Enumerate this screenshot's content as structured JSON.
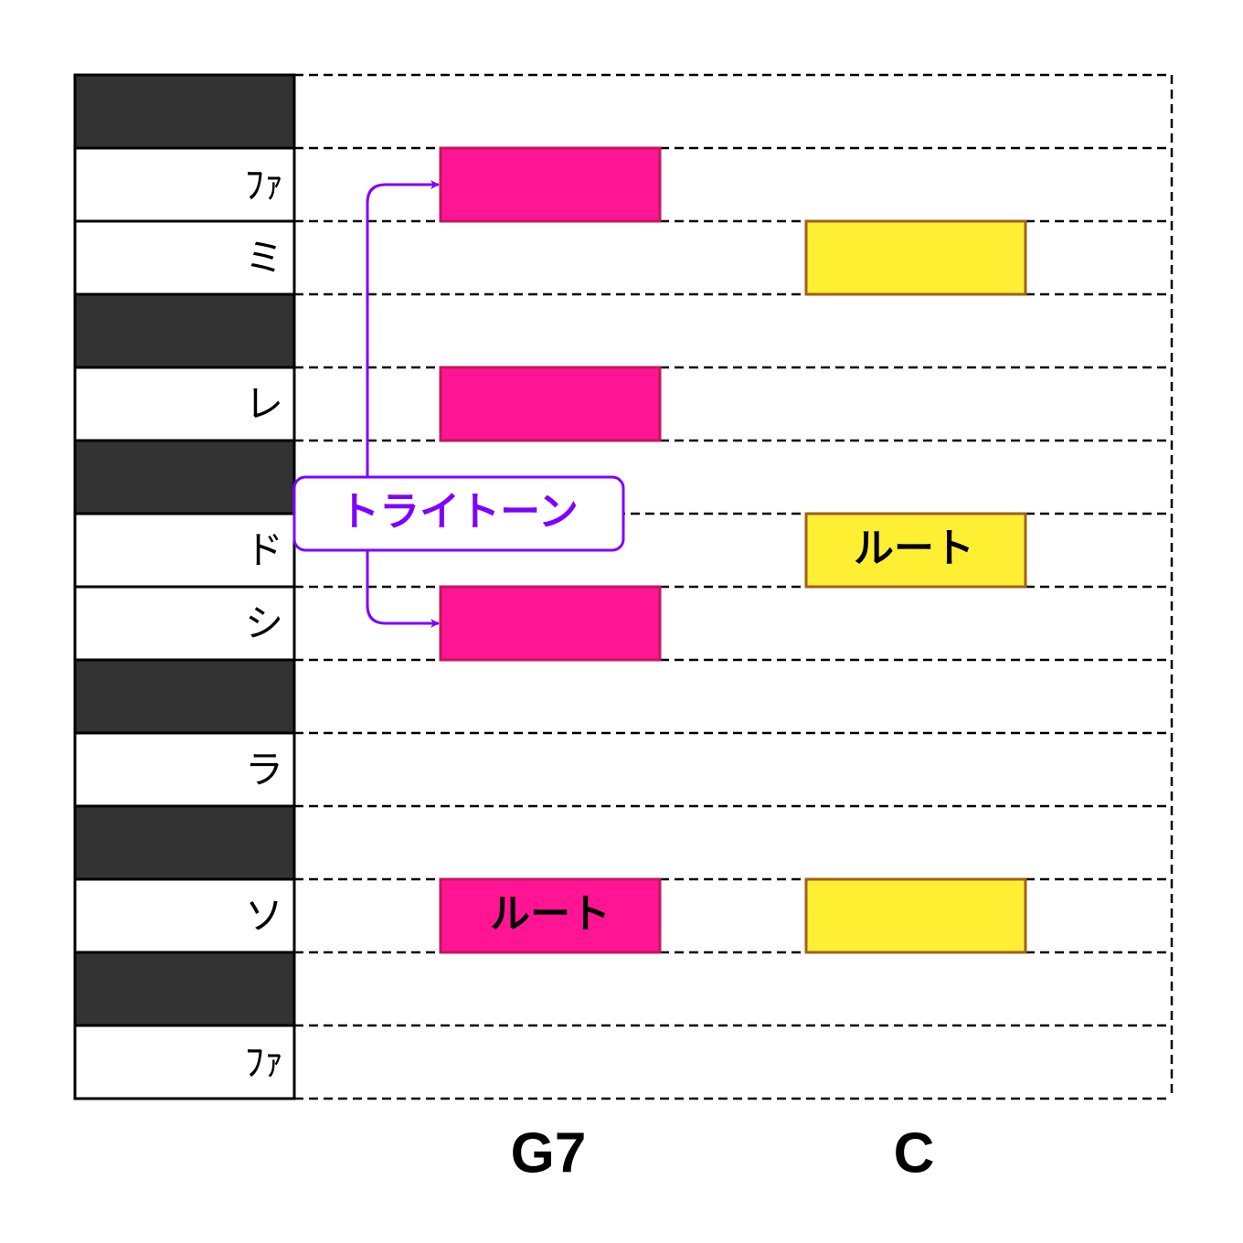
{
  "keys": [
    "ﾌｧ",
    "ミ",
    "レ",
    "ド",
    "シ",
    "ラ",
    "ソ",
    "ﾌｧ"
  ],
  "chords": [
    "G7",
    "C"
  ],
  "note_labels": [
    "ルート",
    "ルート"
  ],
  "tritone_label": "トライトーン"
}
